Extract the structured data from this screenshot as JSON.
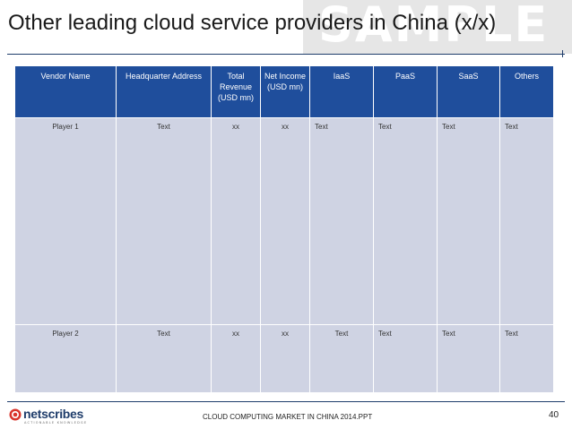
{
  "slide": {
    "title": "Other leading cloud service providers in China (x/x)",
    "watermark": "SAMPLE"
  },
  "table": {
    "headers": [
      "Vendor Name",
      "Headquarter Address",
      "Total Revenue (USD mn)",
      "Net Income (USD mn)",
      "IaaS",
      "PaaS",
      "SaaS",
      "Others"
    ],
    "rows": [
      [
        "Player 1",
        "Text",
        "xx",
        "xx",
        "Text",
        "Text",
        "Text",
        "Text"
      ],
      [
        "Player 2",
        "Text",
        "xx",
        "xx",
        "Text",
        "Text",
        "Text",
        "Text"
      ]
    ]
  },
  "footer": {
    "brand": "netscribes",
    "tagline": "ACTIONABLE KNOWLEDGE",
    "caption": "CLOUD COMPUTING MARKET IN CHINA 2014.PPT",
    "page_number": "40"
  },
  "colors": {
    "header_bg": "#1f4e9c",
    "cell_bg": "#cfd3e3",
    "rule": "#1f3d6b",
    "logo_red": "#d9342b"
  }
}
